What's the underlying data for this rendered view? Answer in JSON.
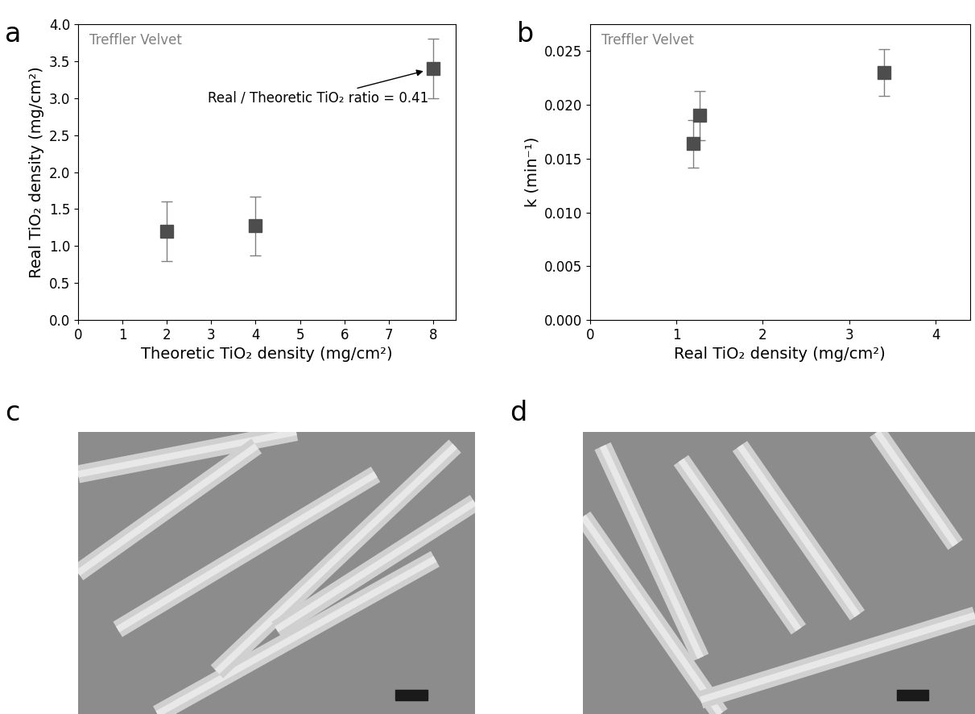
{
  "chart_data": [
    {
      "type": "scatter",
      "title": "a",
      "note": "Treffler Velvet",
      "x_label": "Theoretic TiO₂ density (mg/cm²)",
      "y_label": "Real TiO₂ density (mg/cm²)",
      "x": [
        2,
        4,
        8
      ],
      "values": [
        1.2,
        1.27,
        3.4
      ],
      "errors": [
        0.4,
        0.4,
        0.4
      ],
      "color": "#4d4d4d",
      "marker": "s",
      "xlim": [
        0,
        8.5
      ],
      "xticks": [
        0,
        1,
        2,
        3,
        4,
        5,
        6,
        7,
        8
      ],
      "ylim": [
        0,
        4.0
      ],
      "yticks": [
        {
          "value": 0,
          "label": "0.0"
        },
        0.5,
        {
          "value": 1,
          "label": "1.0"
        },
        1.5,
        {
          "value": 2,
          "label": "2.0"
        },
        2.5,
        {
          "value": 3,
          "label": "3.0"
        },
        3.5,
        {
          "value": 4,
          "label": "4.0"
        }
      ],
      "annotations": [
        {
          "text": "Real / Theoretic TiO₂ ratio = 0.41",
          "x": 8,
          "y": 3.4
        }
      ]
    },
    {
      "type": "scatter",
      "title": "b",
      "note": "Treffler Velvet",
      "x_label": "Real TiO₂ density (mg/cm²)",
      "y_label": "k (min⁻¹)",
      "x": [
        1.2,
        1.27,
        3.4
      ],
      "values": [
        0.0164,
        0.019,
        0.023
      ],
      "errors": [
        0.0022,
        0.0023,
        0.0022
      ],
      "color": "#4d4d4d",
      "marker": "s",
      "xlim": [
        0,
        4.4
      ],
      "xticks": [
        0,
        1,
        2,
        3,
        4
      ],
      "ylim": [
        0,
        0.0275
      ],
      "yticks": [
        {
          "value": 0,
          "label": "0.000"
        },
        0.005,
        {
          "value": 0.01,
          "label": "0.010"
        },
        0.015,
        {
          "value": 0.02,
          "label": "0.020"
        },
        0.025
      ]
    }
  ],
  "images": [
    {
      "title": "c"
    },
    {
      "title": "d"
    }
  ]
}
